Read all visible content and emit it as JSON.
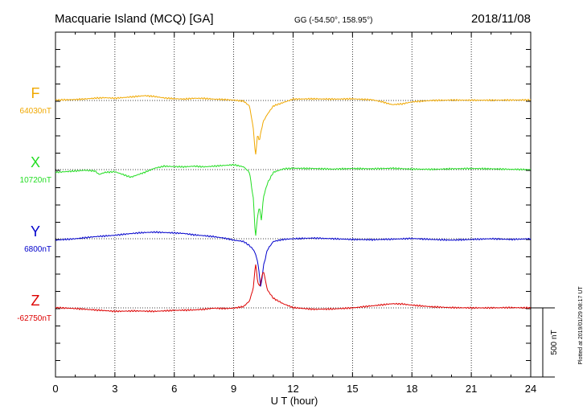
{
  "header": {
    "station": "Macquarie Island (MCQ)  [GA]",
    "coords": "GG (-54.50°, 158.95°)",
    "date": "2018/11/08"
  },
  "footer": {
    "plotted": "Plotted at 2019/01/29 08:17 UT"
  },
  "chart_data": {
    "type": "line",
    "title": "Macquarie Island (MCQ)  [GA]",
    "subtitle": "GG (-54.50°, 158.95°)",
    "date": "2018/11/08",
    "xlabel": "U T (hour)",
    "xlim": [
      0,
      24
    ],
    "xticks": [
      0,
      3,
      6,
      9,
      12,
      15,
      18,
      21,
      24
    ],
    "grid": true,
    "scale_bar": {
      "value": 500,
      "label": "500 nT"
    },
    "series": [
      {
        "name": "F",
        "baseline_label": "64030nT",
        "color": "#f0a800",
        "baseline": 64030,
        "points": [
          [
            0,
            64033
          ],
          [
            0.5,
            64035
          ],
          [
            1,
            64037
          ],
          [
            1.5,
            64041
          ],
          [
            2,
            64047
          ],
          [
            2.5,
            64050
          ],
          [
            3,
            64046
          ],
          [
            3.5,
            64052
          ],
          [
            4,
            64058
          ],
          [
            4.5,
            64065
          ],
          [
            5,
            64059
          ],
          [
            5.5,
            64048
          ],
          [
            6,
            64043
          ],
          [
            6.5,
            64040
          ],
          [
            7,
            64046
          ],
          [
            7.5,
            64045
          ],
          [
            8,
            64040
          ],
          [
            8.5,
            64037
          ],
          [
            9,
            64033
          ],
          [
            9.5,
            64025
          ],
          [
            9.8,
            63990
          ],
          [
            10.0,
            63820
          ],
          [
            10.1,
            63620
          ],
          [
            10.2,
            63780
          ],
          [
            10.3,
            63740
          ],
          [
            10.4,
            63820
          ],
          [
            10.5,
            63880
          ],
          [
            10.7,
            63930
          ],
          [
            11,
            63990
          ],
          [
            11.5,
            64015
          ],
          [
            12,
            64040
          ],
          [
            13,
            64042
          ],
          [
            14,
            64040
          ],
          [
            15,
            64042
          ],
          [
            16,
            64035
          ],
          [
            16.5,
            64020
          ],
          [
            17,
            64000
          ],
          [
            17.5,
            64005
          ],
          [
            18,
            64020
          ],
          [
            19,
            64030
          ],
          [
            20,
            64033
          ],
          [
            21,
            64032
          ],
          [
            22,
            64032
          ],
          [
            23,
            64033
          ],
          [
            24,
            64034
          ]
        ]
      },
      {
        "name": "X",
        "baseline_label": "10720nT",
        "color": "#22dd22",
        "baseline": 10720,
        "points": [
          [
            0,
            10700
          ],
          [
            0.5,
            10705
          ],
          [
            1,
            10710
          ],
          [
            1.5,
            10715
          ],
          [
            2,
            10710
          ],
          [
            2.2,
            10685
          ],
          [
            2.5,
            10700
          ],
          [
            3,
            10705
          ],
          [
            3.5,
            10680
          ],
          [
            3.8,
            10665
          ],
          [
            4,
            10675
          ],
          [
            4.5,
            10700
          ],
          [
            5,
            10730
          ],
          [
            5.5,
            10745
          ],
          [
            6,
            10742
          ],
          [
            6.5,
            10740
          ],
          [
            7,
            10745
          ],
          [
            7.5,
            10740
          ],
          [
            8,
            10745
          ],
          [
            8.5,
            10750
          ],
          [
            9,
            10755
          ],
          [
            9.5,
            10740
          ],
          [
            9.8,
            10700
          ],
          [
            10.0,
            10500
          ],
          [
            10.1,
            10220
          ],
          [
            10.2,
            10380
          ],
          [
            10.3,
            10450
          ],
          [
            10.4,
            10350
          ],
          [
            10.5,
            10520
          ],
          [
            10.7,
            10620
          ],
          [
            11,
            10700
          ],
          [
            11.5,
            10725
          ],
          [
            12,
            10730
          ],
          [
            13,
            10728
          ],
          [
            14,
            10724
          ],
          [
            15,
            10728
          ],
          [
            16,
            10726
          ],
          [
            17,
            10730
          ],
          [
            18,
            10724
          ],
          [
            19,
            10722
          ],
          [
            20,
            10726
          ],
          [
            21,
            10728
          ],
          [
            22,
            10726
          ],
          [
            23,
            10722
          ],
          [
            24,
            10720
          ]
        ]
      },
      {
        "name": "Y",
        "baseline_label": "6800nT",
        "color": "#0000cc",
        "baseline": 6800,
        "points": [
          [
            0,
            6790
          ],
          [
            1,
            6800
          ],
          [
            2,
            6815
          ],
          [
            2.5,
            6820
          ],
          [
            3,
            6825
          ],
          [
            3.5,
            6833
          ],
          [
            4,
            6840
          ],
          [
            4.5,
            6845
          ],
          [
            5,
            6848
          ],
          [
            5.5,
            6845
          ],
          [
            6,
            6842
          ],
          [
            6.5,
            6838
          ],
          [
            7,
            6828
          ],
          [
            7.5,
            6822
          ],
          [
            8,
            6815
          ],
          [
            8.5,
            6805
          ],
          [
            9,
            6790
          ],
          [
            9.5,
            6780
          ],
          [
            9.8,
            6750
          ],
          [
            10.0,
            6720
          ],
          [
            10.1,
            6690
          ],
          [
            10.2,
            6640
          ],
          [
            10.3,
            6540
          ],
          [
            10.35,
            6450
          ],
          [
            10.4,
            6480
          ],
          [
            10.5,
            6600
          ],
          [
            10.7,
            6720
          ],
          [
            11,
            6780
          ],
          [
            11.5,
            6795
          ],
          [
            12,
            6800
          ],
          [
            13,
            6805
          ],
          [
            14,
            6800
          ],
          [
            15,
            6795
          ],
          [
            16,
            6793
          ],
          [
            17,
            6797
          ],
          [
            18,
            6802
          ],
          [
            19,
            6795
          ],
          [
            20,
            6790
          ],
          [
            21,
            6795
          ],
          [
            22,
            6800
          ],
          [
            23,
            6795
          ],
          [
            24,
            6800
          ]
        ]
      },
      {
        "name": "Z",
        "baseline_label": "-62750nT",
        "color": "#dd0000",
        "baseline": -62750,
        "points": [
          [
            0,
            -62748
          ],
          [
            1,
            -62755
          ],
          [
            2,
            -62765
          ],
          [
            3,
            -62775
          ],
          [
            4,
            -62772
          ],
          [
            5,
            -62775
          ],
          [
            6,
            -62768
          ],
          [
            7,
            -62765
          ],
          [
            7.5,
            -62760
          ],
          [
            8,
            -62752
          ],
          [
            8.5,
            -62755
          ],
          [
            9,
            -62752
          ],
          [
            9.5,
            -62740
          ],
          [
            9.8,
            -62700
          ],
          [
            10.0,
            -62600
          ],
          [
            10.1,
            -62420
          ],
          [
            10.2,
            -62550
          ],
          [
            10.3,
            -62600
          ],
          [
            10.5,
            -62480
          ],
          [
            10.7,
            -62620
          ],
          [
            11,
            -62680
          ],
          [
            11.5,
            -62720
          ],
          [
            12,
            -62748
          ],
          [
            13,
            -62760
          ],
          [
            14,
            -62758
          ],
          [
            15,
            -62750
          ],
          [
            16,
            -62735
          ],
          [
            16.5,
            -62728
          ],
          [
            17,
            -62720
          ],
          [
            17.5,
            -62722
          ],
          [
            18,
            -62730
          ],
          [
            19,
            -62742
          ],
          [
            20,
            -62748
          ],
          [
            21,
            -62750
          ],
          [
            22,
            -62750
          ],
          [
            23,
            -62748
          ],
          [
            24,
            -62750
          ]
        ]
      }
    ]
  }
}
